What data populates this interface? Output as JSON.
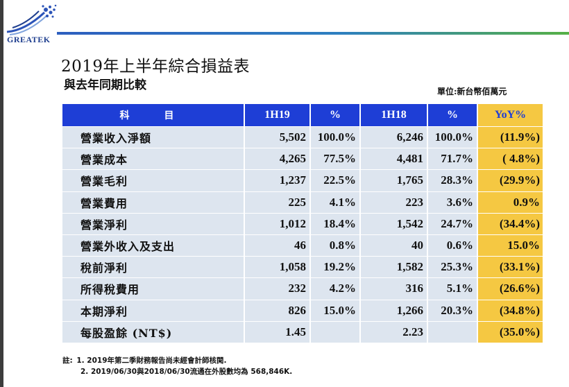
{
  "logo": {
    "text": "GREATEK"
  },
  "title": "2019年上半年綜合損益表",
  "subtitle": "與去年同期比較",
  "unit": "單位:新台幣佰萬元",
  "table": {
    "headers": [
      "科　目",
      "1H19",
      "%",
      "1H18",
      "%",
      "YoY%"
    ],
    "rows": [
      [
        "營業收入淨額",
        "5,502",
        "100.0%",
        "6,246",
        "100.0%",
        "(11.9%)"
      ],
      [
        "營業成本",
        "4,265",
        "77.5%",
        "4,481",
        "71.7%",
        "( 4.8%)"
      ],
      [
        "營業毛利",
        "1,237",
        "22.5%",
        "1,765",
        "28.3%",
        "(29.9%)"
      ],
      [
        "營業費用",
        "225",
        "4.1%",
        "223",
        "3.6%",
        "0.9%"
      ],
      [
        "營業淨利",
        "1,012",
        "18.4%",
        "1,542",
        "24.7%",
        "(34.4%)"
      ],
      [
        "營業外收入及支出",
        "46",
        "0.8%",
        "40",
        "0.6%",
        "15.0%"
      ],
      [
        "稅前淨利",
        "1,058",
        "19.2%",
        "1,582",
        "25.3%",
        "(33.1%)"
      ],
      [
        "所得稅費用",
        "232",
        "4.2%",
        "316",
        "5.1%",
        "(26.6%)"
      ],
      [
        "本期淨利",
        "826",
        "15.0%",
        "1,266",
        "20.3%",
        "(34.8%)"
      ],
      [
        "每股盈餘 (NT$)",
        "1.45",
        "",
        "2.23",
        "",
        "(35.0%)"
      ]
    ]
  },
  "notes": {
    "label": "註:",
    "lines": [
      "1. 2019年第二季財務報告尚未經會計師核閱.",
      "2. 2019/06/30與2018/06/30流通在外股數均為 568,846K."
    ]
  },
  "colors": {
    "header_blue": "#1e3ed6",
    "yoy_yellow": "#f5c842",
    "row_bg": "#dde5ef"
  }
}
